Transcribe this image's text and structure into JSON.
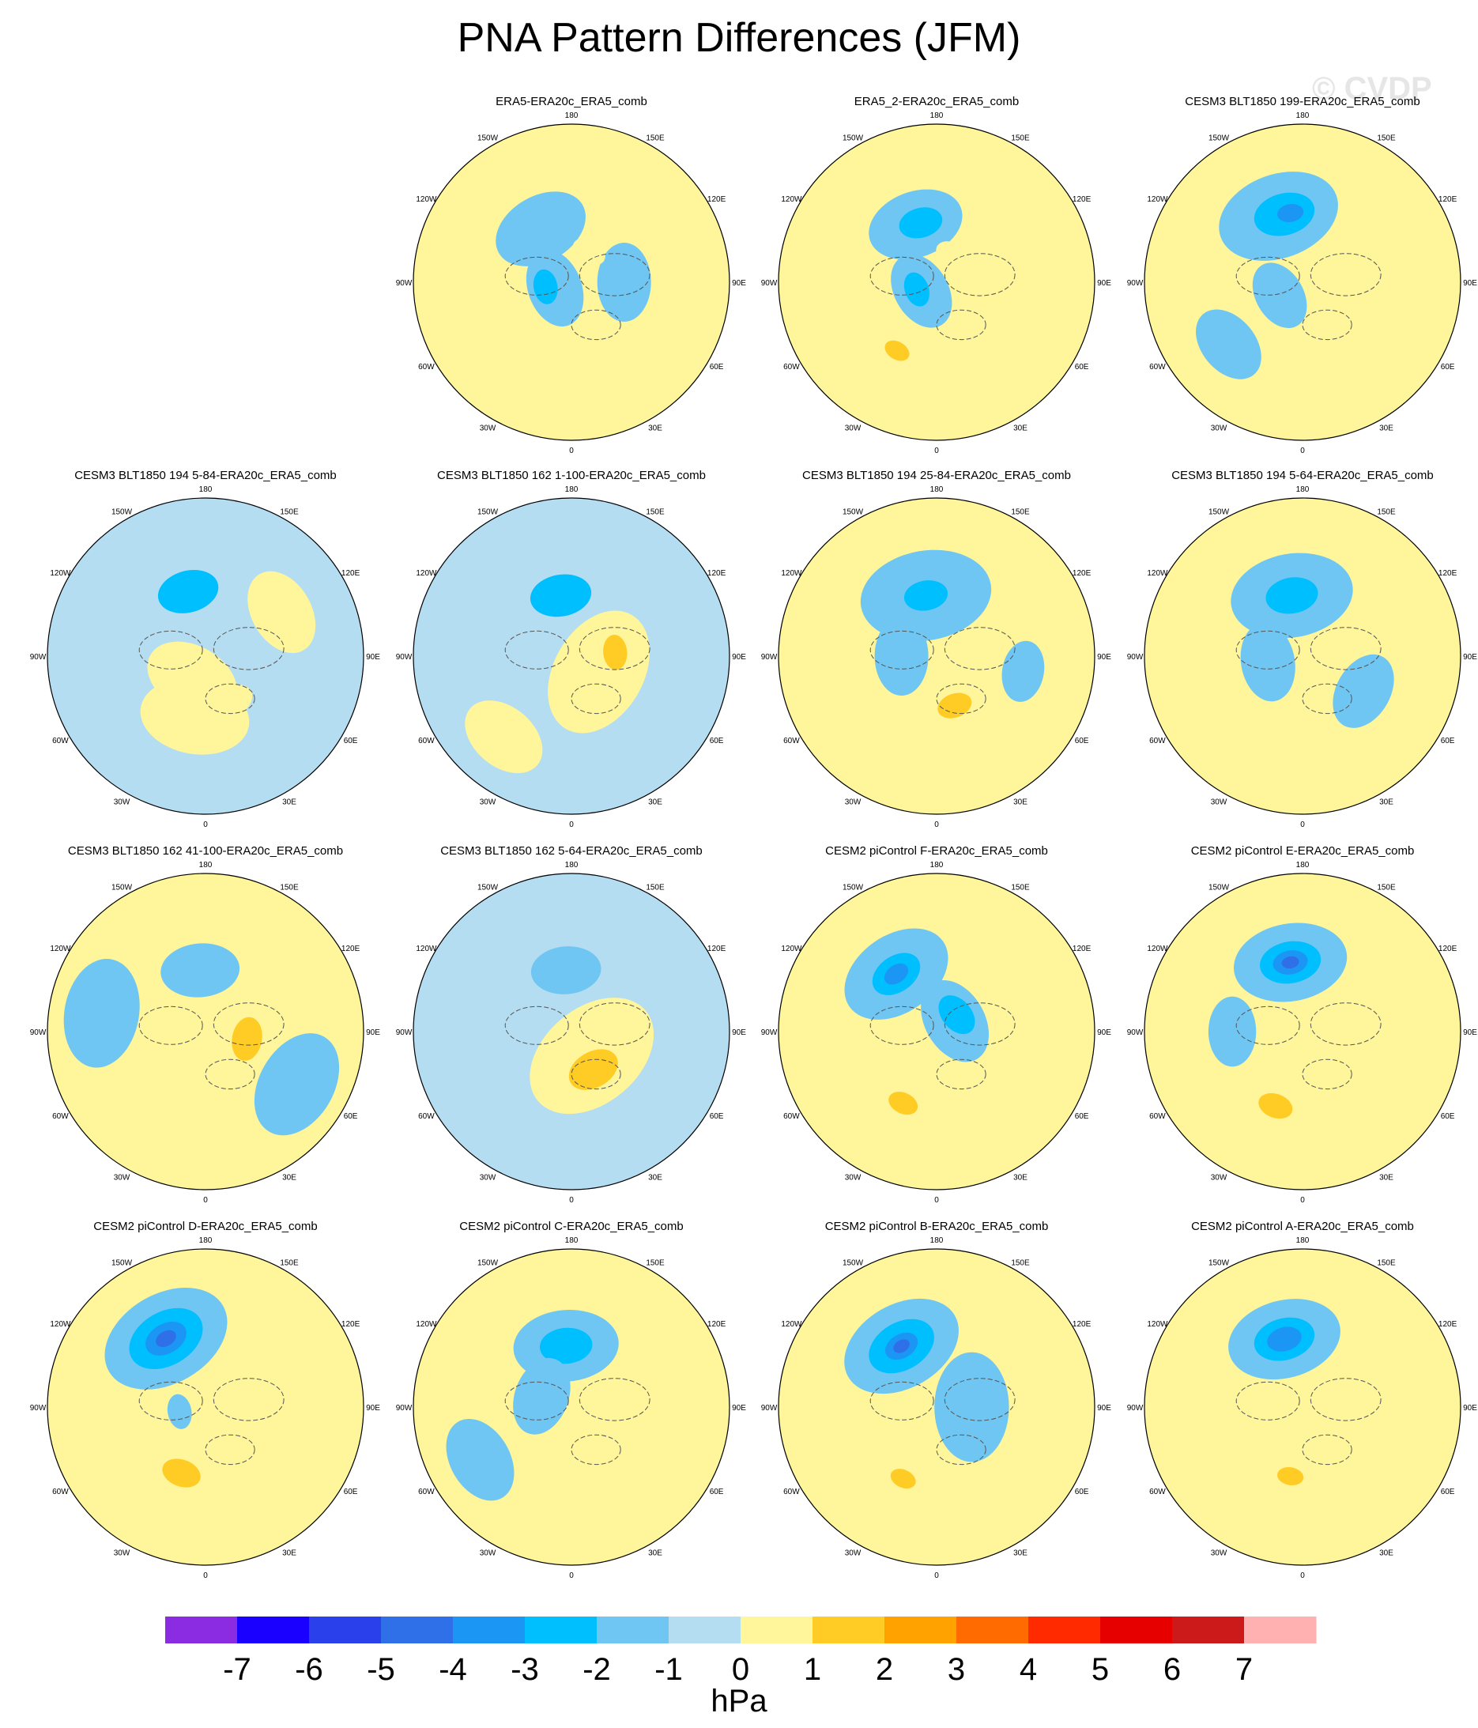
{
  "title": "PNA Pattern Differences (JFM)",
  "watermark": "© CVDP",
  "lon_labels": [
    "180",
    "150E",
    "120E",
    "90E",
    "60E",
    "30E",
    "0",
    "30W",
    "60W",
    "90W",
    "120W",
    "150W"
  ],
  "colorbar": {
    "units": "hPa",
    "labels": [
      "-7",
      "-6",
      "-5",
      "-4",
      "-3",
      "-2",
      "-1",
      "0",
      "1",
      "2",
      "3",
      "4",
      "5",
      "6",
      "7"
    ],
    "colors": [
      "#8b2be2",
      "#1a00ff",
      "#2a40ea",
      "#2f6fe8",
      "#1c96f5",
      "#00bfff",
      "#70c6f2",
      "#b4ddf2",
      "#fff59a",
      "#ffcc26",
      "#ffa200",
      "#ff6b00",
      "#ff2a00",
      "#e60000",
      "#cc1a1a",
      "#ffb0b0"
    ]
  },
  "chart_data": [
    {
      "type": "heatmap",
      "title": "ERA5-ERA20c_ERA5_comb",
      "base": "yellow",
      "features": [
        {
          "lat": 55,
          "lon": -150,
          "r": 22,
          "value": -1
        },
        {
          "lat": 80,
          "lon": -70,
          "r": 18,
          "value": -1
        },
        {
          "lat": 60,
          "lon": 90,
          "r": 18,
          "value": -1
        },
        {
          "lat": 70,
          "lon": 150,
          "r": 8,
          "value": 1
        },
        {
          "lat": 45,
          "lon": -35,
          "r": 12,
          "value": 1
        },
        {
          "lat": 75,
          "lon": -80,
          "r": 8,
          "value": -2
        }
      ]
    },
    {
      "type": "heatmap",
      "title": "ERA5_2-ERA20c_ERA5_comb",
      "base": "yellow",
      "features": [
        {
          "lat": 55,
          "lon": -160,
          "r": 22,
          "value": -1
        },
        {
          "lat": 80,
          "lon": -60,
          "r": 18,
          "value": -1
        },
        {
          "lat": 55,
          "lon": -165,
          "r": 10,
          "value": -2
        },
        {
          "lat": 78,
          "lon": -70,
          "r": 8,
          "value": -2
        },
        {
          "lat": 72,
          "lon": 150,
          "r": 8,
          "value": 1
        },
        {
          "lat": 45,
          "lon": -30,
          "r": 14,
          "value": 1
        },
        {
          "lat": 45,
          "lon": -30,
          "r": 6,
          "value": 2
        }
      ]
    },
    {
      "type": "heatmap",
      "title": "CESM3 BLT1850 199-ERA20c_ERA5_comb",
      "base": "yellow",
      "features": [
        {
          "lat": 50,
          "lon": -160,
          "r": 28,
          "value": -1
        },
        {
          "lat": 50,
          "lon": -165,
          "r": 14,
          "value": -2
        },
        {
          "lat": 50,
          "lon": -170,
          "r": 6,
          "value": -3
        },
        {
          "lat": 75,
          "lon": -60,
          "r": 16,
          "value": -1
        },
        {
          "lat": 35,
          "lon": -50,
          "r": 18,
          "value": -1
        },
        {
          "lat": 65,
          "lon": 120,
          "r": 12,
          "value": 1
        }
      ]
    },
    {
      "type": "heatmap",
      "title": "CESM3 BLT1850 194 5-84-ERA20c_ERA5_comb",
      "base": "blue",
      "features": [
        {
          "lat": 75,
          "lon": -30,
          "r": 22,
          "value": 0
        },
        {
          "lat": 55,
          "lon": -10,
          "r": 25,
          "value": 0
        },
        {
          "lat": 55,
          "lon": -10,
          "r": 12,
          "value": 1
        },
        {
          "lat": 60,
          "lon": 30,
          "r": 10,
          "value": 1
        },
        {
          "lat": 52,
          "lon": -165,
          "r": 14,
          "value": -2
        },
        {
          "lat": 40,
          "lon": 120,
          "r": 20,
          "value": 0
        }
      ]
    },
    {
      "type": "heatmap",
      "title": "CESM3 BLT1850 162 1-100-ERA20c_ERA5_comb",
      "base": "blue",
      "features": [
        {
          "lat": 72,
          "lon": 60,
          "r": 30,
          "value": 0
        },
        {
          "lat": 70,
          "lon": 80,
          "r": 18,
          "value": 1
        },
        {
          "lat": 65,
          "lon": 95,
          "r": 8,
          "value": 2
        },
        {
          "lat": 55,
          "lon": -170,
          "r": 14,
          "value": -2
        },
        {
          "lat": 30,
          "lon": -40,
          "r": 20,
          "value": 0
        }
      ]
    },
    {
      "type": "heatmap",
      "title": "CESM3 BLT1850 194 25-84-ERA20c_ERA5_comb",
      "base": "yellow",
      "features": [
        {
          "lat": 55,
          "lon": -170,
          "r": 30,
          "value": -1
        },
        {
          "lat": 55,
          "lon": -170,
          "r": 10,
          "value": -2
        },
        {
          "lat": 70,
          "lon": -90,
          "r": 18,
          "value": -1
        },
        {
          "lat": 60,
          "lon": 20,
          "r": 22,
          "value": 1
        },
        {
          "lat": 60,
          "lon": 20,
          "r": 8,
          "value": 2
        },
        {
          "lat": 40,
          "lon": 80,
          "r": 14,
          "value": -1
        }
      ]
    },
    {
      "type": "heatmap",
      "title": "CESM3 BLT1850 194 5-64-ERA20c_ERA5_comb",
      "base": "yellow",
      "features": [
        {
          "lat": 55,
          "lon": -170,
          "r": 28,
          "value": -1
        },
        {
          "lat": 55,
          "lon": -170,
          "r": 12,
          "value": -2
        },
        {
          "lat": 70,
          "lon": -80,
          "r": 18,
          "value": -1
        },
        {
          "lat": 50,
          "lon": 10,
          "r": 16,
          "value": 1
        },
        {
          "lat": 50,
          "lon": 60,
          "r": 18,
          "value": -1
        }
      ]
    },
    {
      "type": "heatmap",
      "title": "CESM3 BLT1850 162 41-100-ERA20c_ERA5_comb",
      "base": "yellow",
      "features": [
        {
          "lat": 55,
          "lon": -175,
          "r": 18,
          "value": -1
        },
        {
          "lat": 72,
          "lon": 60,
          "r": 22,
          "value": 1
        },
        {
          "lat": 66,
          "lon": 80,
          "r": 10,
          "value": 2
        },
        {
          "lat": 45,
          "lon": -40,
          "r": 10,
          "value": 1
        },
        {
          "lat": 30,
          "lon": 60,
          "r": 25,
          "value": -1
        },
        {
          "lat": 30,
          "lon": -100,
          "r": 25,
          "value": -1
        }
      ]
    },
    {
      "type": "heatmap",
      "title": "CESM3 BLT1850 162 5-64-ERA20c_ERA5_comb",
      "base": "blue",
      "features": [
        {
          "lat": 72,
          "lon": 40,
          "r": 32,
          "value": 0
        },
        {
          "lat": 70,
          "lon": 40,
          "r": 22,
          "value": 1
        },
        {
          "lat": 65,
          "lon": 30,
          "r": 12,
          "value": 2
        },
        {
          "lat": 55,
          "lon": -175,
          "r": 16,
          "value": -1
        }
      ]
    },
    {
      "type": "heatmap",
      "title": "CESM2 piControl F-ERA20c_ERA5_comb",
      "base": "yellow",
      "features": [
        {
          "lat": 50,
          "lon": -145,
          "r": 26,
          "value": -1
        },
        {
          "lat": 50,
          "lon": -145,
          "r": 12,
          "value": -2
        },
        {
          "lat": 50,
          "lon": -145,
          "r": 6,
          "value": -3
        },
        {
          "lat": 78,
          "lon": 120,
          "r": 20,
          "value": -1
        },
        {
          "lat": 75,
          "lon": 130,
          "r": 10,
          "value": -2
        },
        {
          "lat": 45,
          "lon": -25,
          "r": 14,
          "value": 1
        },
        {
          "lat": 45,
          "lon": -25,
          "r": 7,
          "value": 2
        }
      ]
    },
    {
      "type": "heatmap",
      "title": "CESM2 piControl E-ERA20c_ERA5_comb",
      "base": "yellow",
      "features": [
        {
          "lat": 50,
          "lon": -170,
          "r": 26,
          "value": -1
        },
        {
          "lat": 50,
          "lon": -170,
          "r": 14,
          "value": -2
        },
        {
          "lat": 50,
          "lon": -170,
          "r": 8,
          "value": -3
        },
        {
          "lat": 50,
          "lon": -170,
          "r": 4,
          "value": -4
        },
        {
          "lat": 45,
          "lon": -20,
          "r": 16,
          "value": 1
        },
        {
          "lat": 45,
          "lon": -20,
          "r": 8,
          "value": 2
        },
        {
          "lat": 50,
          "lon": -90,
          "r": 16,
          "value": -1
        }
      ]
    },
    {
      "type": "heatmap",
      "title": "CESM2 piControl D-ERA20c_ERA5_comb",
      "base": "yellow",
      "features": [
        {
          "lat": 45,
          "lon": -150,
          "r": 30,
          "value": -1
        },
        {
          "lat": 45,
          "lon": -150,
          "r": 18,
          "value": -2
        },
        {
          "lat": 45,
          "lon": -150,
          "r": 10,
          "value": -3
        },
        {
          "lat": 45,
          "lon": -150,
          "r": 5,
          "value": -4
        },
        {
          "lat": 50,
          "lon": -20,
          "r": 16,
          "value": 1
        },
        {
          "lat": 50,
          "lon": -20,
          "r": 9,
          "value": 2
        },
        {
          "lat": 75,
          "lon": -80,
          "r": 8,
          "value": -1
        }
      ]
    },
    {
      "type": "heatmap",
      "title": "CESM2 piControl C-ERA20c_ERA5_comb",
      "base": "yellow",
      "features": [
        {
          "lat": 55,
          "lon": -175,
          "r": 24,
          "value": -1
        },
        {
          "lat": 55,
          "lon": -175,
          "r": 12,
          "value": -2
        },
        {
          "lat": 72,
          "lon": -110,
          "r": 18,
          "value": -1
        },
        {
          "lat": 55,
          "lon": 30,
          "r": 22,
          "value": 1
        },
        {
          "lat": 30,
          "lon": -60,
          "r": 20,
          "value": -1
        }
      ]
    },
    {
      "type": "heatmap",
      "title": "CESM2 piControl B-ERA20c_ERA5_comb",
      "base": "yellow",
      "features": [
        {
          "lat": 50,
          "lon": -150,
          "r": 28,
          "value": -1
        },
        {
          "lat": 50,
          "lon": -150,
          "r": 16,
          "value": -2
        },
        {
          "lat": 50,
          "lon": -150,
          "r": 8,
          "value": -3
        },
        {
          "lat": 50,
          "lon": -150,
          "r": 4,
          "value": -4
        },
        {
          "lat": 70,
          "lon": 90,
          "r": 25,
          "value": -1
        },
        {
          "lat": 45,
          "lon": -25,
          "r": 14,
          "value": 1
        },
        {
          "lat": 45,
          "lon": -25,
          "r": 6,
          "value": 2
        }
      ]
    },
    {
      "type": "heatmap",
      "title": "CESM2 piControl A-ERA20c_ERA5_comb",
      "base": "yellow",
      "features": [
        {
          "lat": 50,
          "lon": -165,
          "r": 26,
          "value": -1
        },
        {
          "lat": 50,
          "lon": -165,
          "r": 14,
          "value": -2
        },
        {
          "lat": 50,
          "lon": -165,
          "r": 8,
          "value": -3
        },
        {
          "lat": 50,
          "lon": -10,
          "r": 14,
          "value": 1
        },
        {
          "lat": 50,
          "lon": -10,
          "r": 6,
          "value": 2
        },
        {
          "lat": 50,
          "lon": 20,
          "r": 10,
          "value": 1
        }
      ]
    }
  ]
}
